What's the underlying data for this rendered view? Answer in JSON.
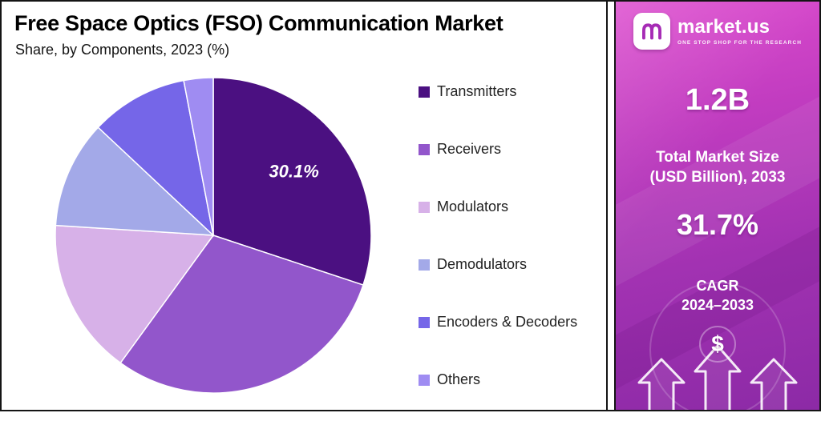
{
  "header": {
    "title": "Free Space Optics (FSO) Communication Market",
    "subtitle": "Share, by Components, 2023 (%)"
  },
  "chart_data": {
    "type": "pie",
    "title": "Free Space Optics (FSO) Communication Market",
    "subtitle": "Share, by Components, 2023 (%)",
    "unit": "%",
    "legend_position": "right",
    "slices": [
      {
        "name": "Transmitters",
        "value": 30.1,
        "color": "#4b1081",
        "label": "30.1%"
      },
      {
        "name": "Receivers",
        "value": 29.9,
        "color": "#9256cb"
      },
      {
        "name": "Modulators",
        "value": 16.0,
        "color": "#d7b1e8"
      },
      {
        "name": "Demodulators",
        "value": 11.0,
        "color": "#a3a9e8"
      },
      {
        "name": "Encoders & Decoders",
        "value": 10.0,
        "color": "#7566e8"
      },
      {
        "name": "Others",
        "value": 3.0,
        "color": "#9f8cf2"
      }
    ]
  },
  "sidebar": {
    "brand": {
      "name": "market.us",
      "tagline": "ONE STOP SHOP FOR THE RESEARCH"
    },
    "market_size": {
      "value": "1.2B",
      "line1": "Total Market Size",
      "line2": "(USD Billion), 2033"
    },
    "cagr": {
      "value": "31.7%",
      "line1": "CAGR",
      "line2": "2024–2033"
    },
    "dollar": "$"
  }
}
